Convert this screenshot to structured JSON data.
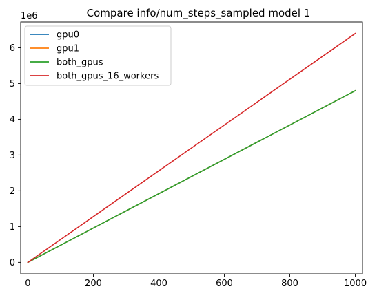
{
  "chart_data": {
    "type": "line",
    "title": "Compare info/num_steps_sampled model 1",
    "xlabel": "",
    "ylabel": "",
    "y_offset_label": "1e6",
    "xlim": [
      -22,
      1022
    ],
    "ylim": [
      -320000,
      6720000
    ],
    "x_ticks": [
      0,
      200,
      400,
      600,
      800,
      1000
    ],
    "y_ticks": [
      0,
      1000000,
      2000000,
      3000000,
      4000000,
      5000000,
      6000000
    ],
    "y_tick_labels": [
      "0",
      "1",
      "2",
      "3",
      "4",
      "5",
      "6"
    ],
    "x_tick_labels": [
      "0",
      "200",
      "400",
      "600",
      "800",
      "1000"
    ],
    "grid": false,
    "legend_position": "top-left",
    "series": [
      {
        "name": "gpu0",
        "color": "#1f77b4",
        "x": [
          0,
          1000
        ],
        "y": [
          0,
          4800000
        ]
      },
      {
        "name": "gpu1",
        "color": "#ff7f0e",
        "x": [
          0,
          1000
        ],
        "y": [
          0,
          4800000
        ]
      },
      {
        "name": "both_gpus",
        "color": "#2ca02c",
        "x": [
          0,
          1000
        ],
        "y": [
          0,
          4800000
        ]
      },
      {
        "name": "both_gpus_16_workers",
        "color": "#d62728",
        "x": [
          0,
          1000
        ],
        "y": [
          0,
          6400000
        ]
      }
    ]
  }
}
